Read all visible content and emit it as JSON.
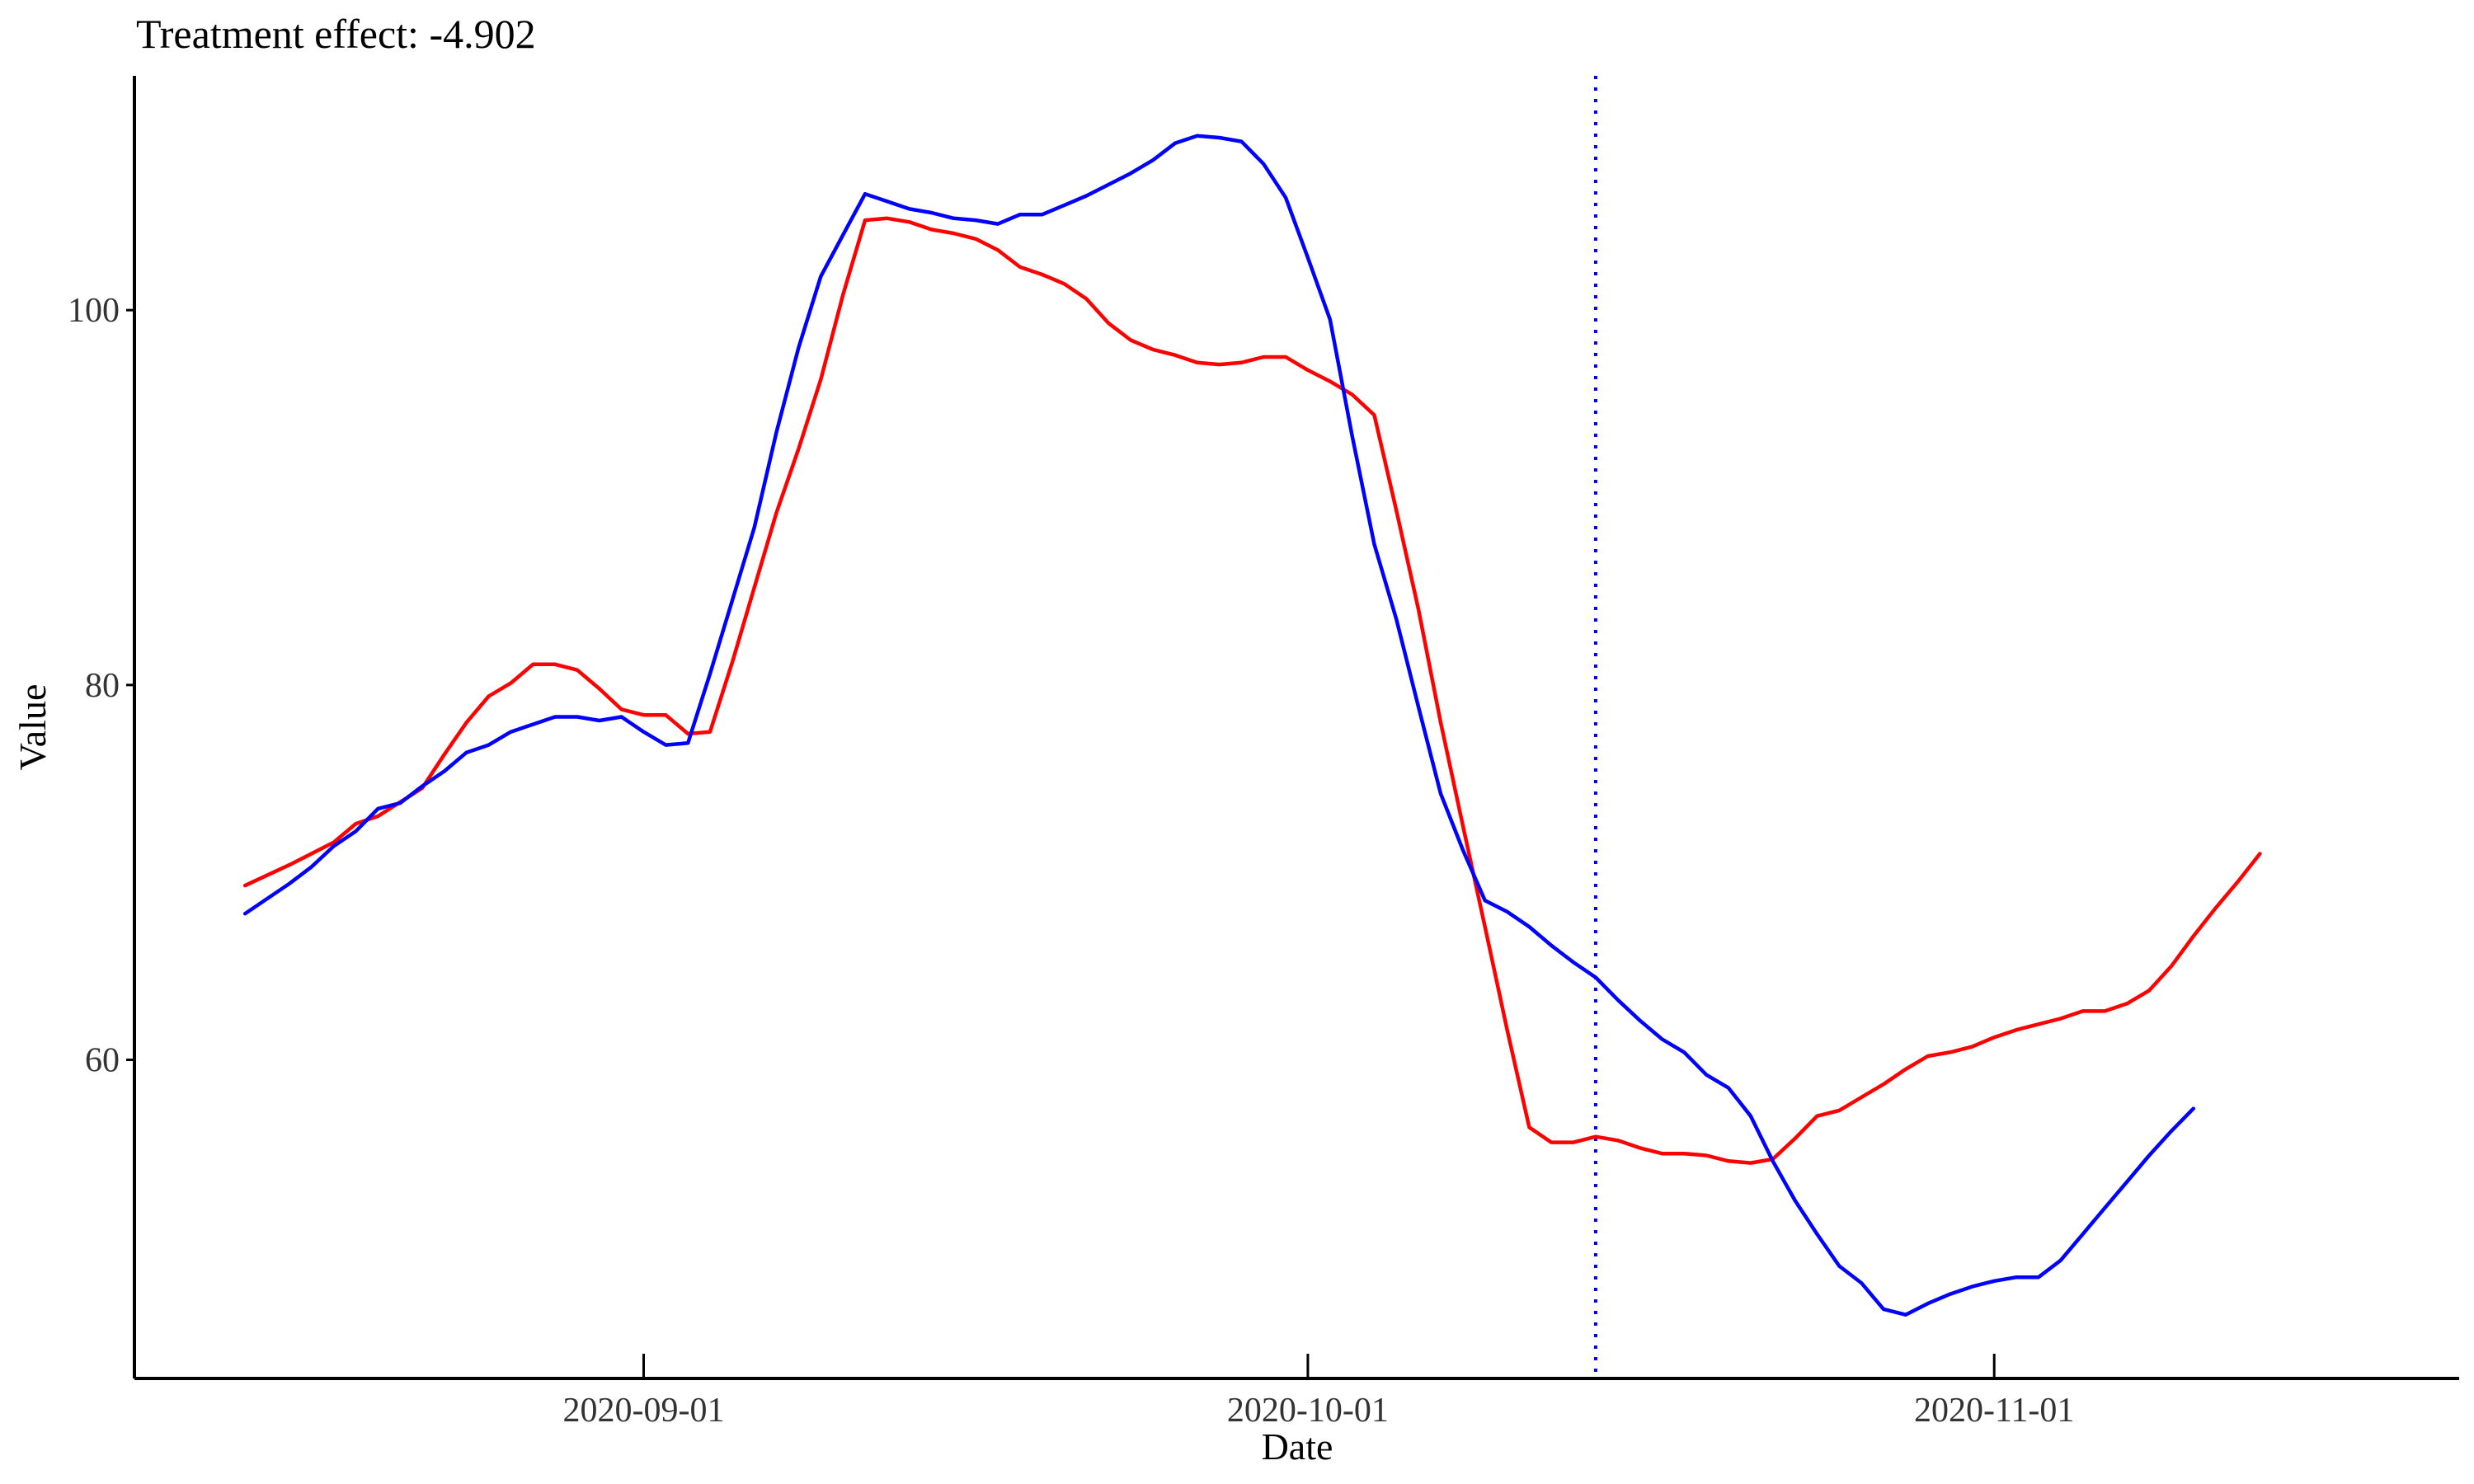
{
  "chart_data": {
    "type": "line",
    "title": "Treatment effect: -4.902",
    "xlabel": "Date",
    "ylabel": "Value",
    "grid": false,
    "xlim": [
      "2020-08-09",
      "2020-11-22"
    ],
    "ylim": [
      43,
      112.5
    ],
    "x_ticks": [
      "2020-09-01",
      "2020-10-01",
      "2020-11-01"
    ],
    "y_ticks": [
      60,
      80,
      100
    ],
    "intervention_date": "2020-10-14",
    "intervention_color": "#0000ff",
    "series": [
      {
        "color": "#ff0000",
        "points": [
          [
            "2020-08-14",
            69.3
          ],
          [
            "2020-08-16",
            70.4
          ],
          [
            "2020-08-18",
            71.6
          ],
          [
            "2020-08-19",
            72.6
          ],
          [
            "2020-08-20",
            73.0
          ],
          [
            "2020-08-22",
            74.5
          ],
          [
            "2020-08-23",
            76.3
          ],
          [
            "2020-08-24",
            78.0
          ],
          [
            "2020-08-25",
            79.4
          ],
          [
            "2020-08-26",
            80.1
          ],
          [
            "2020-08-27",
            81.1
          ],
          [
            "2020-08-28",
            81.1
          ],
          [
            "2020-08-29",
            80.8
          ],
          [
            "2020-08-30",
            79.8
          ],
          [
            "2020-08-31",
            78.7
          ],
          [
            "2020-09-01",
            78.4
          ],
          [
            "2020-09-02",
            78.4
          ],
          [
            "2020-09-03",
            77.4
          ],
          [
            "2020-09-04",
            77.5
          ],
          [
            "2020-09-05",
            81.2
          ],
          [
            "2020-09-06",
            85.2
          ],
          [
            "2020-09-07",
            89.2
          ],
          [
            "2020-09-08",
            92.6
          ],
          [
            "2020-09-09",
            96.3
          ],
          [
            "2020-09-10",
            100.8
          ],
          [
            "2020-09-11",
            104.8
          ],
          [
            "2020-09-12",
            104.9
          ],
          [
            "2020-09-13",
            104.7
          ],
          [
            "2020-09-14",
            104.3
          ],
          [
            "2020-09-15",
            104.1
          ],
          [
            "2020-09-16",
            103.8
          ],
          [
            "2020-09-17",
            103.2
          ],
          [
            "2020-09-18",
            102.3
          ],
          [
            "2020-09-19",
            101.9
          ],
          [
            "2020-09-20",
            101.4
          ],
          [
            "2020-09-21",
            100.6
          ],
          [
            "2020-09-22",
            99.3
          ],
          [
            "2020-09-23",
            98.4
          ],
          [
            "2020-09-24",
            97.9
          ],
          [
            "2020-09-25",
            97.6
          ],
          [
            "2020-09-26",
            97.2
          ],
          [
            "2020-09-27",
            97.1
          ],
          [
            "2020-09-28",
            97.2
          ],
          [
            "2020-09-29",
            97.5
          ],
          [
            "2020-09-30",
            97.5
          ],
          [
            "2020-10-01",
            96.8
          ],
          [
            "2020-10-02",
            96.2
          ],
          [
            "2020-10-03",
            95.5
          ],
          [
            "2020-10-04",
            94.4
          ],
          [
            "2020-10-05",
            89.3
          ],
          [
            "2020-10-06",
            84.0
          ],
          [
            "2020-10-07",
            78.0
          ],
          [
            "2020-10-08",
            72.5
          ],
          [
            "2020-10-09",
            67.1
          ],
          [
            "2020-10-10",
            61.6
          ],
          [
            "2020-10-11",
            56.4
          ],
          [
            "2020-10-12",
            55.6
          ],
          [
            "2020-10-13",
            55.6
          ],
          [
            "2020-10-14",
            55.9
          ],
          [
            "2020-10-15",
            55.7
          ],
          [
            "2020-10-16",
            55.3
          ],
          [
            "2020-10-17",
            55.0
          ],
          [
            "2020-10-18",
            55.0
          ],
          [
            "2020-10-19",
            54.9
          ],
          [
            "2020-10-20",
            54.6
          ],
          [
            "2020-10-21",
            54.5
          ],
          [
            "2020-10-22",
            54.7
          ],
          [
            "2020-10-23",
            55.8
          ],
          [
            "2020-10-24",
            57.0
          ],
          [
            "2020-10-25",
            57.3
          ],
          [
            "2020-10-26",
            58.0
          ],
          [
            "2020-10-27",
            58.7
          ],
          [
            "2020-10-28",
            59.5
          ],
          [
            "2020-10-29",
            60.2
          ],
          [
            "2020-10-30",
            60.4
          ],
          [
            "2020-10-31",
            60.7
          ],
          [
            "2020-11-01",
            61.2
          ],
          [
            "2020-11-02",
            61.6
          ],
          [
            "2020-11-03",
            61.9
          ],
          [
            "2020-11-04",
            62.2
          ],
          [
            "2020-11-05",
            62.6
          ],
          [
            "2020-11-06",
            62.6
          ],
          [
            "2020-11-07",
            63.0
          ],
          [
            "2020-11-08",
            63.7
          ],
          [
            "2020-11-09",
            65.0
          ],
          [
            "2020-11-10",
            66.6
          ],
          [
            "2020-11-11",
            68.1
          ],
          [
            "2020-11-12",
            69.5
          ],
          [
            "2020-11-13",
            71.0
          ]
        ]
      },
      {
        "color": "#0000ff",
        "points": [
          [
            "2020-08-14",
            67.8
          ],
          [
            "2020-08-16",
            69.4
          ],
          [
            "2020-08-17",
            70.3
          ],
          [
            "2020-08-18",
            71.4
          ],
          [
            "2020-08-19",
            72.2
          ],
          [
            "2020-08-20",
            73.4
          ],
          [
            "2020-08-21",
            73.7
          ],
          [
            "2020-08-22",
            74.6
          ],
          [
            "2020-08-23",
            75.4
          ],
          [
            "2020-08-24",
            76.4
          ],
          [
            "2020-08-25",
            76.8
          ],
          [
            "2020-08-26",
            77.5
          ],
          [
            "2020-08-27",
            77.9
          ],
          [
            "2020-08-28",
            78.3
          ],
          [
            "2020-08-29",
            78.3
          ],
          [
            "2020-08-30",
            78.1
          ],
          [
            "2020-08-31",
            78.3
          ],
          [
            "2020-09-01",
            77.5
          ],
          [
            "2020-09-02",
            76.8
          ],
          [
            "2020-09-03",
            76.9
          ],
          [
            "2020-09-04",
            80.6
          ],
          [
            "2020-09-05",
            84.5
          ],
          [
            "2020-09-06",
            88.4
          ],
          [
            "2020-09-07",
            93.5
          ],
          [
            "2020-09-08",
            98.0
          ],
          [
            "2020-09-09",
            101.8
          ],
          [
            "2020-09-10",
            104.0
          ],
          [
            "2020-09-11",
            106.2
          ],
          [
            "2020-09-12",
            105.8
          ],
          [
            "2020-09-13",
            105.4
          ],
          [
            "2020-09-14",
            105.2
          ],
          [
            "2020-09-15",
            104.9
          ],
          [
            "2020-09-16",
            104.8
          ],
          [
            "2020-09-17",
            104.6
          ],
          [
            "2020-09-18",
            105.1
          ],
          [
            "2020-09-19",
            105.1
          ],
          [
            "2020-09-20",
            105.6
          ],
          [
            "2020-09-21",
            106.1
          ],
          [
            "2020-09-22",
            106.7
          ],
          [
            "2020-09-23",
            107.3
          ],
          [
            "2020-09-24",
            108.0
          ],
          [
            "2020-09-25",
            108.9
          ],
          [
            "2020-09-26",
            109.3
          ],
          [
            "2020-09-27",
            109.2
          ],
          [
            "2020-09-28",
            109.0
          ],
          [
            "2020-09-29",
            107.8
          ],
          [
            "2020-09-30",
            106.0
          ],
          [
            "2020-10-01",
            102.8
          ],
          [
            "2020-10-02",
            99.5
          ],
          [
            "2020-10-03",
            93.3
          ],
          [
            "2020-10-04",
            87.5
          ],
          [
            "2020-10-05",
            83.5
          ],
          [
            "2020-10-06",
            78.8
          ],
          [
            "2020-10-07",
            74.2
          ],
          [
            "2020-10-08",
            71.2
          ],
          [
            "2020-10-09",
            68.5
          ],
          [
            "2020-10-10",
            67.9
          ],
          [
            "2020-10-11",
            67.1
          ],
          [
            "2020-10-12",
            66.1
          ],
          [
            "2020-10-13",
            65.2
          ],
          [
            "2020-10-14",
            64.4
          ],
          [
            "2020-10-15",
            63.2
          ],
          [
            "2020-10-16",
            62.1
          ],
          [
            "2020-10-17",
            61.1
          ],
          [
            "2020-10-18",
            60.4
          ],
          [
            "2020-10-19",
            59.2
          ],
          [
            "2020-10-20",
            58.5
          ],
          [
            "2020-10-21",
            57.0
          ],
          [
            "2020-10-22",
            54.6
          ],
          [
            "2020-10-23",
            52.5
          ],
          [
            "2020-10-24",
            50.7
          ],
          [
            "2020-10-25",
            49.0
          ],
          [
            "2020-10-26",
            48.1
          ],
          [
            "2020-10-27",
            46.7
          ],
          [
            "2020-10-28",
            46.4
          ],
          [
            "2020-10-29",
            47.0
          ],
          [
            "2020-10-30",
            47.5
          ],
          [
            "2020-10-31",
            47.9
          ],
          [
            "2020-11-01",
            48.2
          ],
          [
            "2020-11-02",
            48.4
          ],
          [
            "2020-11-03",
            48.4
          ],
          [
            "2020-11-04",
            49.3
          ],
          [
            "2020-11-05",
            50.7
          ],
          [
            "2020-11-06",
            52.1
          ],
          [
            "2020-11-07",
            53.5
          ],
          [
            "2020-11-08",
            54.9
          ],
          [
            "2020-11-09",
            56.2
          ],
          [
            "2020-11-10",
            57.4
          ]
        ]
      }
    ]
  }
}
